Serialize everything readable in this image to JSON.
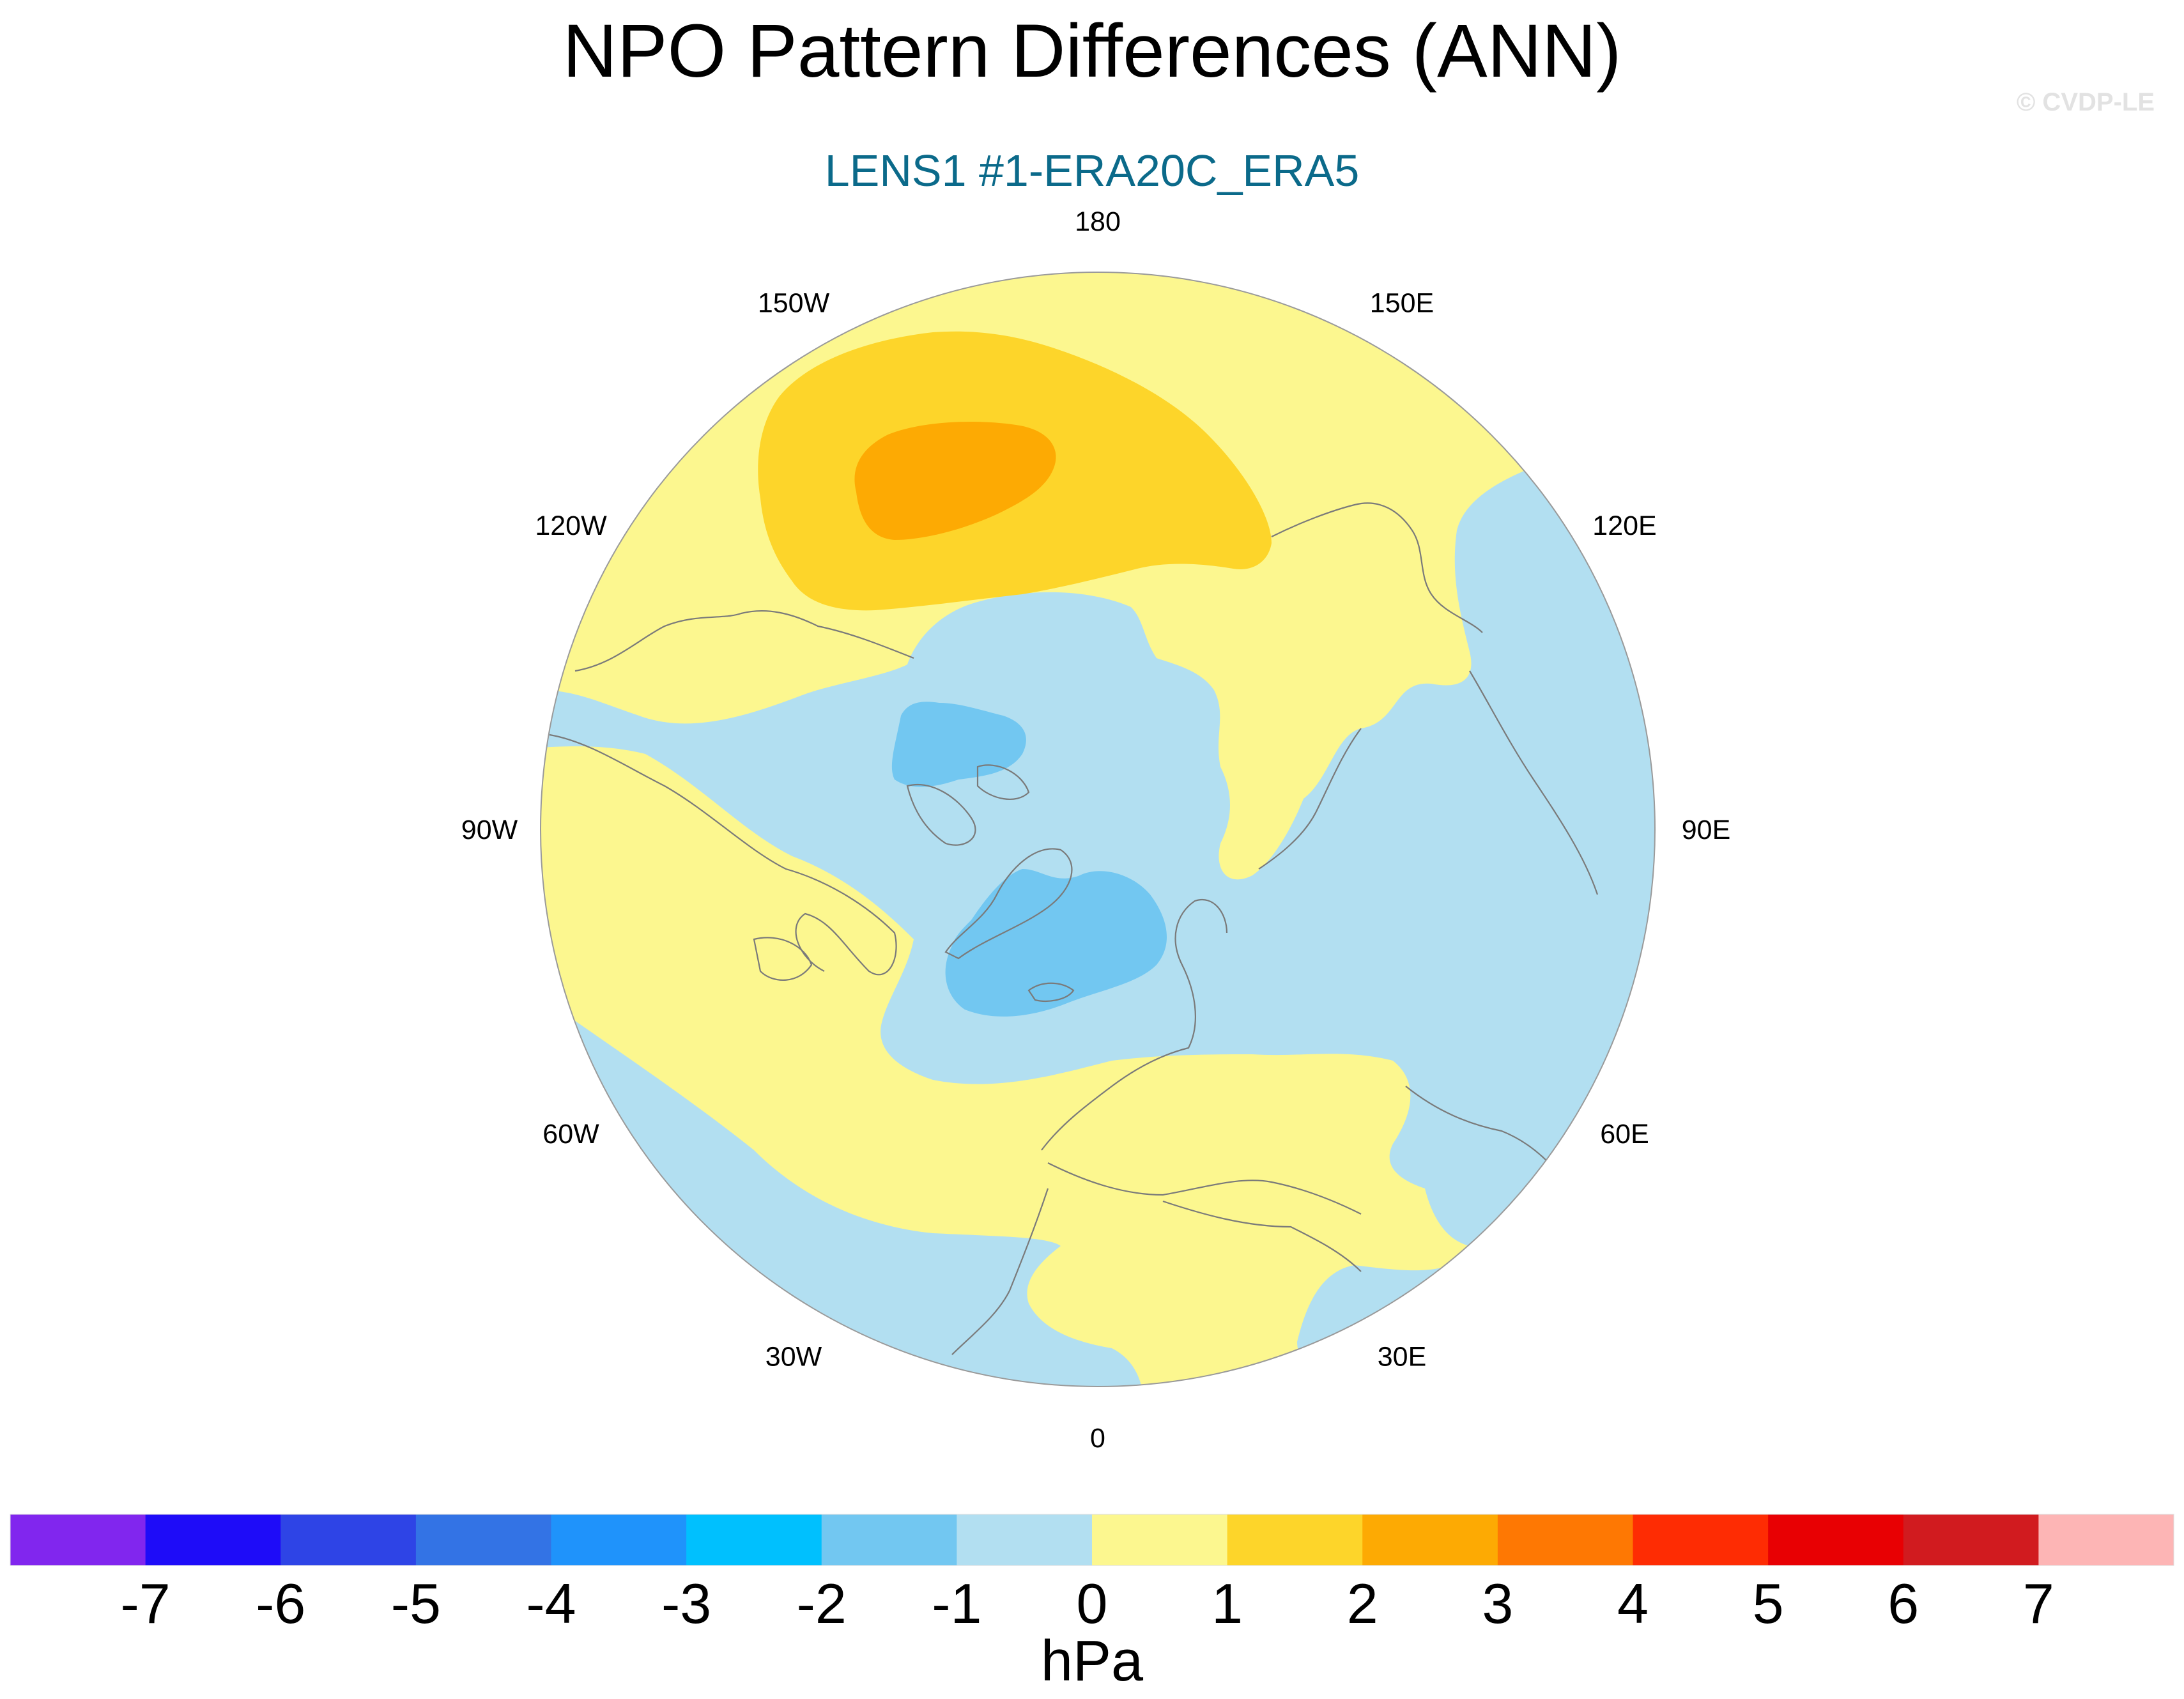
{
  "header": {
    "title": "NPO Pattern Differences (ANN)",
    "credit": "© CVDP-LE",
    "subtitle": "LENS1 #1-ERA20C_ERA5"
  },
  "map": {
    "projection": "north polar stereographic",
    "longitude_labels": [
      {
        "lon": 180,
        "label": "180"
      },
      {
        "lon": 150,
        "label": "150E"
      },
      {
        "lon": 120,
        "label": "120E"
      },
      {
        "lon": 90,
        "label": "90E"
      },
      {
        "lon": 60,
        "label": "60E"
      },
      {
        "lon": 30,
        "label": "30E"
      },
      {
        "lon": 0,
        "label": "0"
      },
      {
        "lon": -30,
        "label": "30W"
      },
      {
        "lon": -60,
        "label": "60W"
      },
      {
        "lon": -90,
        "label": "90W"
      },
      {
        "lon": -120,
        "label": "120W"
      },
      {
        "lon": -150,
        "label": "150W"
      }
    ],
    "features": [
      {
        "name": "north-pacific-positive-center",
        "value_range": "2 to 3 hPa"
      },
      {
        "name": "arctic-canada-negative-center",
        "value_range": "-2 to -1 hPa"
      },
      {
        "name": "greenland-iceland-negative-center",
        "value_range": "-2 to -1 hPa"
      }
    ]
  },
  "colorbar": {
    "unit": "hPa",
    "labels": [
      "-7",
      "-6",
      "-5",
      "-4",
      "-3",
      "-2",
      "-1",
      "0",
      "1",
      "2",
      "3",
      "4",
      "5",
      "6",
      "7"
    ],
    "colors": [
      "#8126ee",
      "#1e0cf8",
      "#2e44e6",
      "#3373e5",
      "#1f93fb",
      "#00c0fe",
      "#72c7f1",
      "#b2dff1",
      "#fcf78f",
      "#fdd52a",
      "#fdaa03",
      "#fe7803",
      "#fe2c03",
      "#e80003",
      "#d11b1f",
      "#fdb5b5"
    ]
  },
  "palette": {
    "land_outline": "#7a7a7a",
    "map_border": "#9a9a9a"
  }
}
